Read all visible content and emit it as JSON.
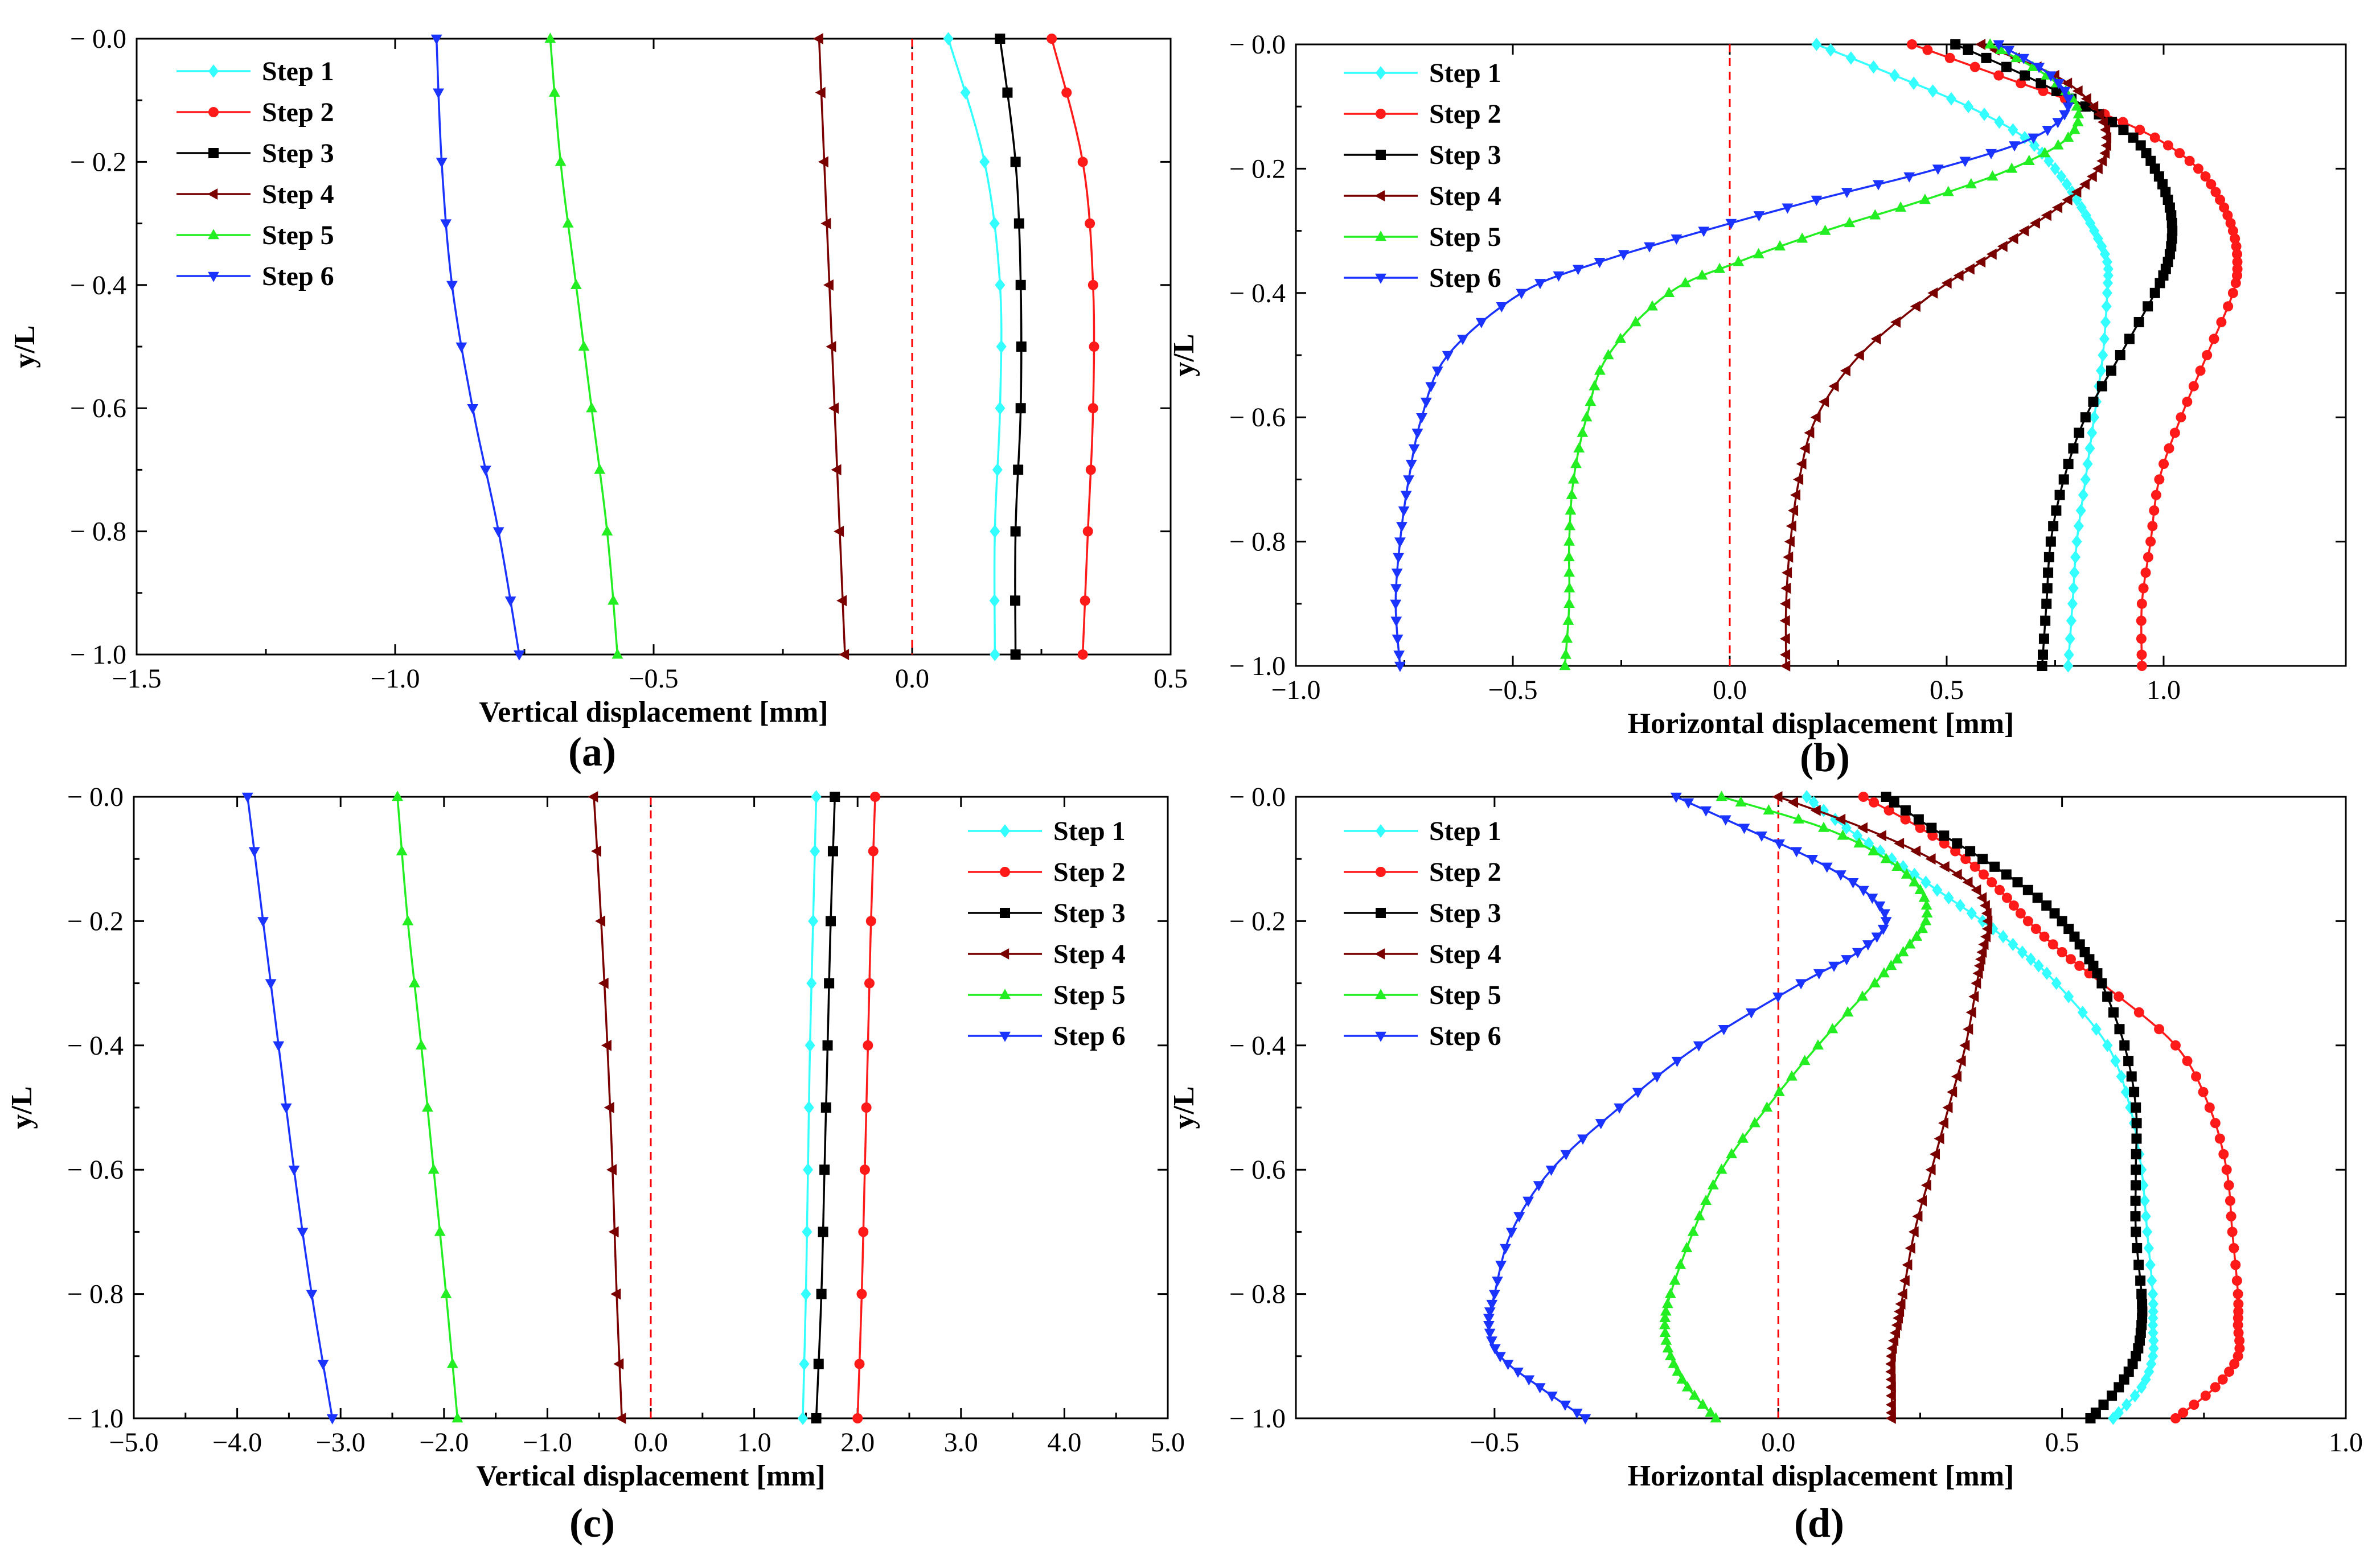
{
  "figure": {
    "legend_labels": [
      "Step 1",
      "Step 2",
      "Step 3",
      "Step 4",
      "Step 5",
      "Step 6"
    ],
    "series_colors": [
      "#33ffff",
      "#ff1a1a",
      "#000000",
      "#7a0000",
      "#22ee22",
      "#1a33ff"
    ],
    "marker_types": [
      "diamond",
      "circle",
      "square",
      "triangle-left",
      "triangle-up",
      "triangle-down"
    ],
    "reference_line_color": "#ff0000"
  },
  "chart_data": [
    {
      "type": "line",
      "panel": "(a)",
      "xlabel": "Vertical displacement [mm]",
      "ylabel": "y/L",
      "xlim": [
        -1.5,
        0.5
      ],
      "ylim": [
        -1.0,
        0.0
      ],
      "xticks": [
        -1.5,
        -1.0,
        -0.5,
        0.0,
        0.5
      ],
      "xtick_labels": [
        "−1.5",
        "−1.0",
        "−0.5",
        "0.0",
        "0.5"
      ],
      "yticks": [
        0.0,
        -0.2,
        -0.4,
        -0.6,
        -0.8,
        -1.0
      ],
      "ytick_labels": [
        "− 0.0",
        "− 0.2",
        "− 0.4",
        "− 0.6",
        "− 0.8",
        "− 1.0"
      ],
      "legend_position": "top-left",
      "reference_line_x": 0.0,
      "markers_every_n": 1,
      "series": [
        {
          "name": "Step 1",
          "y": [
            0.0,
            -0.2,
            -0.4,
            -0.6,
            -0.8,
            -1.0
          ],
          "x": [
            0.07,
            0.14,
            0.17,
            0.17,
            0.16,
            0.16
          ]
        },
        {
          "name": "Step 2",
          "y": [
            0.0,
            -0.2,
            -0.4,
            -0.6,
            -0.8,
            -1.0
          ],
          "x": [
            0.27,
            0.33,
            0.35,
            0.35,
            0.34,
            0.33
          ]
        },
        {
          "name": "Step 3",
          "y": [
            0.0,
            -0.2,
            -0.4,
            -0.6,
            -0.8,
            -1.0
          ],
          "x": [
            0.17,
            0.2,
            0.21,
            0.21,
            0.2,
            0.2
          ]
        },
        {
          "name": "Step 4",
          "y": [
            0.0,
            -0.2,
            -0.4,
            -0.6,
            -0.8,
            -1.0
          ],
          "x": [
            -0.18,
            -0.17,
            -0.16,
            -0.15,
            -0.14,
            -0.13
          ]
        },
        {
          "name": "Step 5",
          "y": [
            0.0,
            -0.2,
            -0.4,
            -0.6,
            -0.8,
            -1.0
          ],
          "x": [
            -0.7,
            -0.68,
            -0.65,
            -0.62,
            -0.59,
            -0.57
          ]
        },
        {
          "name": "Step 6",
          "y": [
            0.0,
            -0.2,
            -0.4,
            -0.6,
            -0.8,
            -1.0
          ],
          "x": [
            -0.92,
            -0.91,
            -0.89,
            -0.85,
            -0.8,
            -0.76
          ]
        }
      ]
    },
    {
      "type": "line",
      "panel": "(b)",
      "xlabel": "Horizontal displacement [mm]",
      "ylabel": "y/L",
      "xlim": [
        -1.0,
        1.42
      ],
      "ylim": [
        -1.0,
        0.0
      ],
      "xticks": [
        -1.0,
        -0.5,
        0.0,
        0.5,
        1.0
      ],
      "xtick_labels": [
        "−1.0",
        "−0.5",
        "0.0",
        "0.5",
        "1.0"
      ],
      "yticks": [
        0.0,
        -0.2,
        -0.4,
        -0.6,
        -0.8,
        -1.0
      ],
      "ytick_labels": [
        "− 0.0",
        "− 0.2",
        "− 0.4",
        "− 0.6",
        "− 0.8",
        "− 1.0"
      ],
      "legend_position": "top-left",
      "reference_line_x": 0.0,
      "markers_every_n": 2,
      "series": [
        {
          "name": "Step 1",
          "y": [
            0.0,
            -0.05,
            -0.1,
            -0.15,
            -0.2,
            -0.25,
            -0.3,
            -0.35,
            -0.4,
            -0.5,
            -0.6,
            -0.7,
            -0.8,
            -0.9,
            -1.0
          ],
          "x": [
            0.2,
            0.38,
            0.55,
            0.68,
            0.75,
            0.8,
            0.84,
            0.87,
            0.87,
            0.86,
            0.84,
            0.82,
            0.8,
            0.79,
            0.78
          ]
        },
        {
          "name": "Step 2",
          "y": [
            0.0,
            -0.05,
            -0.1,
            -0.15,
            -0.2,
            -0.25,
            -0.3,
            -0.35,
            -0.4,
            -0.5,
            -0.6,
            -0.7,
            -0.8,
            -0.9,
            -1.0
          ],
          "x": [
            0.42,
            0.62,
            0.82,
            0.98,
            1.08,
            1.13,
            1.16,
            1.17,
            1.16,
            1.1,
            1.04,
            0.99,
            0.97,
            0.95,
            0.95
          ]
        },
        {
          "name": "Step 3",
          "y": [
            0.0,
            -0.05,
            -0.1,
            -0.15,
            -0.2,
            -0.25,
            -0.3,
            -0.35,
            -0.4,
            -0.5,
            -0.6,
            -0.7,
            -0.8,
            -0.9,
            -1.0
          ],
          "x": [
            0.52,
            0.68,
            0.82,
            0.93,
            0.98,
            1.01,
            1.02,
            1.01,
            0.98,
            0.9,
            0.82,
            0.77,
            0.74,
            0.73,
            0.72
          ]
        },
        {
          "name": "Step 4",
          "y": [
            0.0,
            -0.05,
            -0.1,
            -0.15,
            -0.2,
            -0.25,
            -0.3,
            -0.35,
            -0.4,
            -0.5,
            -0.6,
            -0.7,
            -0.8,
            -0.9,
            -1.0
          ],
          "x": [
            0.58,
            0.75,
            0.84,
            0.87,
            0.85,
            0.78,
            0.68,
            0.58,
            0.47,
            0.3,
            0.2,
            0.16,
            0.14,
            0.13,
            0.13
          ]
        },
        {
          "name": "Step 5",
          "y": [
            0.0,
            -0.05,
            -0.1,
            -0.15,
            -0.2,
            -0.25,
            -0.3,
            -0.35,
            -0.4,
            -0.5,
            -0.6,
            -0.7,
            -0.8,
            -0.9,
            -1.0
          ],
          "x": [
            0.6,
            0.73,
            0.8,
            0.78,
            0.65,
            0.45,
            0.22,
            0.02,
            -0.14,
            -0.28,
            -0.33,
            -0.36,
            -0.37,
            -0.37,
            -0.38
          ]
        },
        {
          "name": "Step 6",
          "y": [
            0.0,
            -0.05,
            -0.1,
            -0.15,
            -0.2,
            -0.25,
            -0.3,
            -0.35,
            -0.4,
            -0.5,
            -0.6,
            -0.7,
            -0.8,
            -0.9,
            -1.0
          ],
          "x": [
            0.62,
            0.74,
            0.78,
            0.7,
            0.48,
            0.2,
            -0.06,
            -0.3,
            -0.48,
            -0.65,
            -0.71,
            -0.74,
            -0.76,
            -0.77,
            -0.76
          ]
        }
      ]
    },
    {
      "type": "line",
      "panel": "(c)",
      "xlabel": "Vertical displacement [mm]",
      "ylabel": "y/L",
      "xlim": [
        -5.0,
        5.0
      ],
      "ylim": [
        -1.0,
        0.0
      ],
      "xticks": [
        -5.0,
        -4.0,
        -3.0,
        -2.0,
        -1.0,
        0.0,
        1.0,
        2.0,
        3.0,
        4.0,
        5.0
      ],
      "xtick_labels": [
        "−5.0",
        "−4.0",
        "−3.0",
        "−2.0",
        "−1.0",
        "0.0",
        "1.0",
        "2.0",
        "3.0",
        "4.0",
        "5.0"
      ],
      "yticks": [
        0.0,
        -0.2,
        -0.4,
        -0.6,
        -0.8,
        -1.0
      ],
      "ytick_labels": [
        "− 0.0",
        "− 0.2",
        "− 0.4",
        "− 0.6",
        "− 0.8",
        "− 1.0"
      ],
      "legend_position": "top-right",
      "reference_line_x": 0.0,
      "markers_every_n": 1,
      "series": [
        {
          "name": "Step 1",
          "y": [
            0.0,
            -0.2,
            -0.4,
            -0.6,
            -0.8,
            -1.0
          ],
          "x": [
            1.6,
            1.57,
            1.54,
            1.52,
            1.5,
            1.47
          ]
        },
        {
          "name": "Step 2",
          "y": [
            0.0,
            -0.2,
            -0.4,
            -0.6,
            -0.8,
            -1.0
          ],
          "x": [
            2.17,
            2.13,
            2.1,
            2.07,
            2.04,
            2.0
          ]
        },
        {
          "name": "Step 3",
          "y": [
            0.0,
            -0.2,
            -0.4,
            -0.6,
            -0.8,
            -1.0
          ],
          "x": [
            1.78,
            1.74,
            1.71,
            1.68,
            1.65,
            1.6
          ]
        },
        {
          "name": "Step 4",
          "y": [
            0.0,
            -0.2,
            -0.4,
            -0.6,
            -0.8,
            -1.0
          ],
          "x": [
            -0.55,
            -0.48,
            -0.42,
            -0.37,
            -0.33,
            -0.28
          ]
        },
        {
          "name": "Step 5",
          "y": [
            0.0,
            -0.2,
            -0.4,
            -0.6,
            -0.8,
            -1.0
          ],
          "x": [
            -2.45,
            -2.35,
            -2.22,
            -2.1,
            -1.98,
            -1.87
          ]
        },
        {
          "name": "Step 6",
          "y": [
            0.0,
            -0.2,
            -0.4,
            -0.6,
            -0.8,
            -1.0
          ],
          "x": [
            -3.9,
            -3.75,
            -3.6,
            -3.45,
            -3.28,
            -3.08
          ]
        }
      ]
    },
    {
      "type": "line",
      "panel": "(d)",
      "xlabel": "Horizontal displacement [mm]",
      "ylabel": "y/L",
      "xlim": [
        -0.85,
        1.0
      ],
      "ylim": [
        -1.0,
        0.0
      ],
      "xticks": [
        -0.5,
        0.0,
        0.5,
        1.0
      ],
      "xtick_labels": [
        "−0.5",
        "0.0",
        "0.5",
        "1.0"
      ],
      "yticks": [
        0.0,
        -0.2,
        -0.4,
        -0.6,
        -0.8,
        -1.0
      ],
      "ytick_labels": [
        "− 0.0",
        "− 0.2",
        "− 0.4",
        "− 0.6",
        "− 0.8",
        "− 1.0"
      ],
      "legend_position": "top-left",
      "reference_line_x": 0.0,
      "markers_every_n": 2,
      "series": [
        {
          "name": "Step 1",
          "y": [
            0.0,
            -0.05,
            -0.1,
            -0.15,
            -0.2,
            -0.25,
            -0.3,
            -0.4,
            -0.5,
            -0.6,
            -0.7,
            -0.8,
            -0.85,
            -0.9,
            -0.95,
            -1.0
          ],
          "x": [
            0.05,
            0.12,
            0.2,
            0.28,
            0.36,
            0.43,
            0.49,
            0.58,
            0.62,
            0.64,
            0.65,
            0.66,
            0.66,
            0.66,
            0.64,
            0.59
          ]
        },
        {
          "name": "Step 2",
          "y": [
            0.0,
            -0.05,
            -0.1,
            -0.15,
            -0.2,
            -0.25,
            -0.3,
            -0.4,
            -0.5,
            -0.6,
            -0.7,
            -0.8,
            -0.85,
            -0.9,
            -0.95,
            -1.0
          ],
          "x": [
            0.15,
            0.25,
            0.33,
            0.39,
            0.44,
            0.5,
            0.57,
            0.7,
            0.76,
            0.79,
            0.8,
            0.81,
            0.81,
            0.81,
            0.77,
            0.7
          ]
        },
        {
          "name": "Step 3",
          "y": [
            0.0,
            -0.05,
            -0.1,
            -0.15,
            -0.2,
            -0.25,
            -0.3,
            -0.4,
            -0.5,
            -0.6,
            -0.7,
            -0.8,
            -0.85,
            -0.9,
            -0.95,
            -1.0
          ],
          "x": [
            0.19,
            0.27,
            0.36,
            0.44,
            0.5,
            0.54,
            0.57,
            0.61,
            0.63,
            0.63,
            0.63,
            0.64,
            0.64,
            0.63,
            0.6,
            0.55
          ]
        },
        {
          "name": "Step 4",
          "y": [
            0.0,
            -0.05,
            -0.1,
            -0.15,
            -0.2,
            -0.25,
            -0.3,
            -0.4,
            -0.5,
            -0.6,
            -0.7,
            -0.8,
            -0.85,
            -0.9,
            -0.95,
            -1.0
          ],
          "x": [
            0.0,
            0.15,
            0.27,
            0.35,
            0.37,
            0.36,
            0.35,
            0.33,
            0.3,
            0.27,
            0.24,
            0.22,
            0.21,
            0.2,
            0.2,
            0.2
          ]
        },
        {
          "name": "Step 5",
          "y": [
            0.0,
            -0.05,
            -0.1,
            -0.15,
            -0.2,
            -0.25,
            -0.3,
            -0.4,
            -0.5,
            -0.6,
            -0.7,
            -0.8,
            -0.85,
            -0.9,
            -0.95,
            -1.0
          ],
          "x": [
            -0.1,
            0.08,
            0.19,
            0.25,
            0.26,
            0.22,
            0.17,
            0.07,
            -0.02,
            -0.1,
            -0.15,
            -0.19,
            -0.2,
            -0.19,
            -0.16,
            -0.11
          ]
        },
        {
          "name": "Step 6",
          "y": [
            0.0,
            -0.05,
            -0.1,
            -0.15,
            -0.2,
            -0.25,
            -0.3,
            -0.4,
            -0.5,
            -0.6,
            -0.7,
            -0.8,
            -0.85,
            -0.9,
            -0.95,
            -1.0
          ],
          "x": [
            -0.18,
            -0.06,
            0.06,
            0.15,
            0.19,
            0.14,
            0.04,
            -0.14,
            -0.28,
            -0.4,
            -0.47,
            -0.5,
            -0.51,
            -0.49,
            -0.42,
            -0.34
          ]
        }
      ]
    }
  ]
}
